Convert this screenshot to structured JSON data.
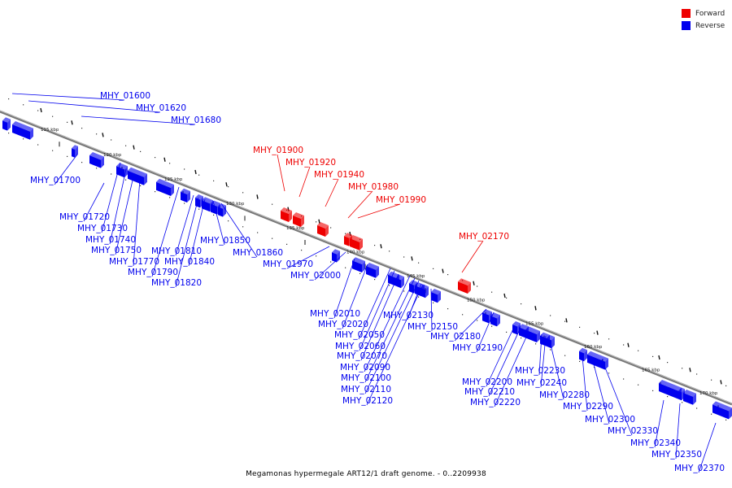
{
  "legend": {
    "forward": {
      "label": "Forward",
      "color": "#ee0000"
    },
    "reverse": {
      "label": "Reverse",
      "color": "#0000ee"
    }
  },
  "caption": "Megamonas hypermegale ART12/1 draft genome. - 0..2209938",
  "ruler_labels": [
    "115 kbp",
    "120 kbp",
    "125 kbp",
    "130 kbp",
    "135 kbp",
    "140 kbp",
    "145 kbp",
    "150 kbp",
    "155 kbp",
    "160 kbp",
    "165 kbp",
    "170 kbp"
  ],
  "genes": [
    {
      "label": "MHY_01600",
      "strand": "reverse"
    },
    {
      "label": "MHY_01620",
      "strand": "reverse"
    },
    {
      "label": "MHY_01680",
      "strand": "reverse"
    },
    {
      "label": "MHY_01700",
      "strand": "reverse"
    },
    {
      "label": "MHY_01720",
      "strand": "reverse"
    },
    {
      "label": "MHY_01730",
      "strand": "reverse"
    },
    {
      "label": "MHY_01740",
      "strand": "reverse"
    },
    {
      "label": "MHY_01750",
      "strand": "reverse"
    },
    {
      "label": "MHY_01770",
      "strand": "reverse"
    },
    {
      "label": "MHY_01790",
      "strand": "reverse"
    },
    {
      "label": "MHY_01810",
      "strand": "reverse"
    },
    {
      "label": "MHY_01820",
      "strand": "reverse"
    },
    {
      "label": "MHY_01840",
      "strand": "reverse"
    },
    {
      "label": "MHY_01850",
      "strand": "reverse"
    },
    {
      "label": "MHY_01860",
      "strand": "reverse"
    },
    {
      "label": "MHY_01900",
      "strand": "forward"
    },
    {
      "label": "MHY_01920",
      "strand": "forward"
    },
    {
      "label": "MHY_01940",
      "strand": "forward"
    },
    {
      "label": "MHY_01980",
      "strand": "forward"
    },
    {
      "label": "MHY_01990",
      "strand": "forward"
    },
    {
      "label": "MHY_01970",
      "strand": "reverse"
    },
    {
      "label": "MHY_02000",
      "strand": "reverse"
    },
    {
      "label": "MHY_02170",
      "strand": "forward"
    },
    {
      "label": "MHY_02010",
      "strand": "reverse"
    },
    {
      "label": "MHY_02020",
      "strand": "reverse"
    },
    {
      "label": "MHY_02050",
      "strand": "reverse"
    },
    {
      "label": "MHY_02060",
      "strand": "reverse"
    },
    {
      "label": "MHY_02070",
      "strand": "reverse"
    },
    {
      "label": "MHY_02090",
      "strand": "reverse"
    },
    {
      "label": "MHY_02100",
      "strand": "reverse"
    },
    {
      "label": "MHY_02110",
      "strand": "reverse"
    },
    {
      "label": "MHY_02120",
      "strand": "reverse"
    },
    {
      "label": "MHY_02130",
      "strand": "reverse"
    },
    {
      "label": "MHY_02150",
      "strand": "reverse"
    },
    {
      "label": "MHY_02180",
      "strand": "reverse"
    },
    {
      "label": "MHY_02190",
      "strand": "reverse"
    },
    {
      "label": "MHY_02200",
      "strand": "reverse"
    },
    {
      "label": "MHY_02210",
      "strand": "reverse"
    },
    {
      "label": "MHY_02220",
      "strand": "reverse"
    },
    {
      "label": "MHY_02230",
      "strand": "reverse"
    },
    {
      "label": "MHY_02240",
      "strand": "reverse"
    },
    {
      "label": "MHY_02280",
      "strand": "reverse"
    },
    {
      "label": "MHY_02290",
      "strand": "reverse"
    },
    {
      "label": "MHY_02300",
      "strand": "reverse"
    },
    {
      "label": "MHY_02330",
      "strand": "reverse"
    },
    {
      "label": "MHY_02340",
      "strand": "reverse"
    },
    {
      "label": "MHY_02350",
      "strand": "reverse"
    },
    {
      "label": "MHY_02370",
      "strand": "reverse"
    }
  ]
}
